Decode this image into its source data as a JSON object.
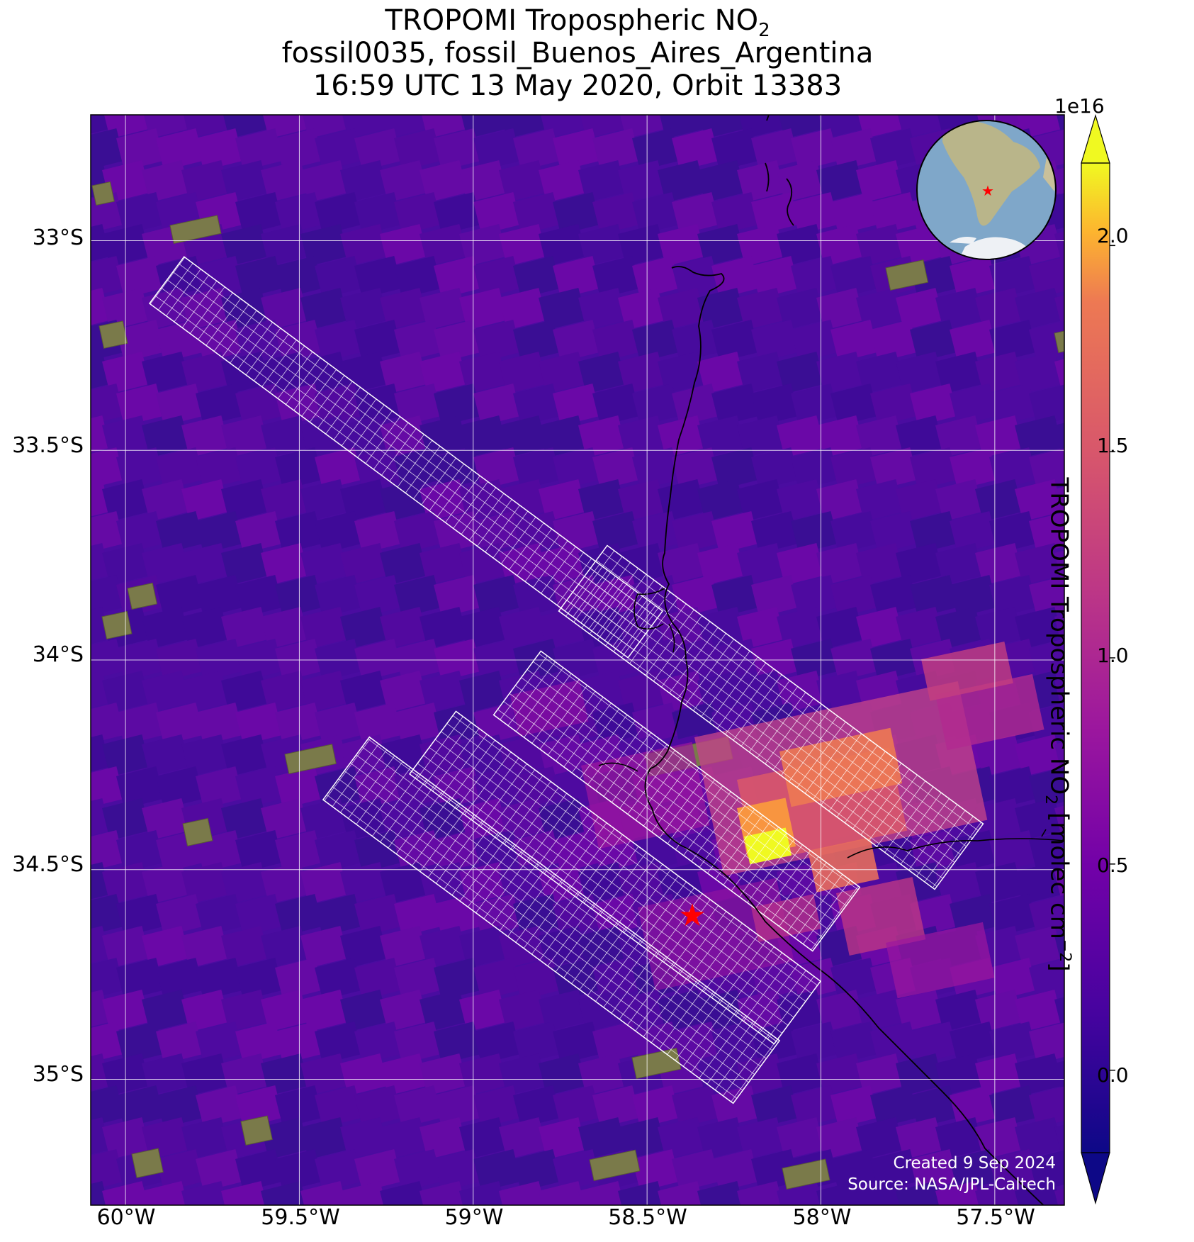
{
  "title": {
    "line1_prefix": "TROPOMI Tropospheric NO",
    "line1_sub": "2",
    "line2": "fossil0035, fossil_Buenos_Aires_Argentina",
    "line3": "16:59 UTC 13 May 2020, Orbit 13383"
  },
  "axes": {
    "x_ticks": [
      "60°W",
      "59.5°W",
      "59°W",
      "58.5°W",
      "58°W",
      "57.5°W"
    ],
    "x_values": [
      -60,
      -59.5,
      -59,
      -58.5,
      -58,
      -57.5
    ],
    "y_ticks": [
      "33°S",
      "33.5°S",
      "34°S",
      "34.5°S",
      "35°S"
    ],
    "y_values": [
      -33,
      -33.5,
      -34,
      -34.5,
      -35
    ],
    "lon_range": [
      -60.1,
      -57.3
    ],
    "lat_range": [
      -32.7,
      -35.3
    ]
  },
  "colorbar": {
    "colormap": "plasma",
    "exponent": "1e16",
    "label_prefix": "TROPOMI Tropospheric NO",
    "label_sub": "2",
    "label_units": " [molec cm",
    "label_sup": "−2",
    "label_end": "]",
    "ticks": [
      "0.0",
      "0.5",
      "1.0",
      "1.5",
      "2.0"
    ],
    "tick_values": [
      0.0,
      0.5,
      1.0,
      1.5,
      2.0
    ],
    "range": [
      -0.2,
      2.2
    ],
    "extend": "both"
  },
  "site": {
    "name": "fossil_Buenos_Aires_Argentina",
    "lon": -58.37,
    "lat": -34.61,
    "marker_color": "#ff0000"
  },
  "inset_globe": {
    "marker_color": "#ff0000"
  },
  "credit": {
    "line1": "Created 9 Sep 2024",
    "line2": "Source: NASA/JPL-Caltech"
  },
  "colors": {
    "background_no2": "#4a0ca0",
    "grid": "#ffffff",
    "target_grid": "#ffffff",
    "coastline": "#000000"
  }
}
